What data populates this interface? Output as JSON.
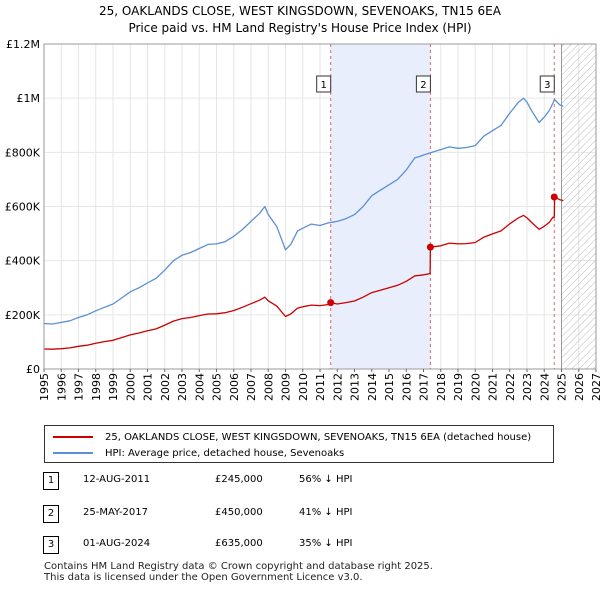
{
  "chart_data": {
    "type": "line",
    "title": "25, OAKLANDS CLOSE, WEST KINGSDOWN, SEVENOAKS, TN15 6EA",
    "subtitle": "Price paid vs. HM Land Registry's House Price Index (HPI)",
    "xlim": [
      1995,
      2027
    ],
    "ylim": [
      0,
      1200000
    ],
    "yticks": [
      0,
      200000,
      400000,
      600000,
      800000,
      1000000,
      1200000
    ],
    "ytick_labels": [
      "£0",
      "£200K",
      "£400K",
      "£600K",
      "£800K",
      "£1M",
      "£1.2M"
    ],
    "xticks": [
      1995,
      1996,
      1997,
      1998,
      1999,
      2000,
      2001,
      2002,
      2003,
      2004,
      2005,
      2006,
      2007,
      2008,
      2009,
      2010,
      2011,
      2012,
      2013,
      2014,
      2015,
      2016,
      2017,
      2018,
      2019,
      2020,
      2021,
      2022,
      2023,
      2024,
      2025,
      2026,
      2027
    ],
    "grid": true,
    "shaded_band": [
      2011.62,
      2017.4
    ],
    "hatched_from": 2025.0,
    "series": [
      {
        "name": "HPI: Average price, detached house, Sevenoaks",
        "color": "#5b8fd6",
        "x": [
          1995.0,
          1995.5,
          1996.0,
          1996.5,
          1997.0,
          1997.5,
          1998.0,
          1998.5,
          1999.0,
          1999.5,
          2000.0,
          2000.5,
          2001.0,
          2001.5,
          2002.0,
          2002.5,
          2003.0,
          2003.5,
          2004.0,
          2004.5,
          2005.0,
          2005.5,
          2006.0,
          2006.5,
          2007.0,
          2007.5,
          2007.8,
          2008.0,
          2008.5,
          2009.0,
          2009.3,
          2009.7,
          2010.0,
          2010.5,
          2011.0,
          2011.5,
          2012.0,
          2012.5,
          2013.0,
          2013.5,
          2014.0,
          2014.5,
          2015.0,
          2015.5,
          2016.0,
          2016.5,
          2016.8,
          2017.0,
          2017.5,
          2018.0,
          2018.5,
          2019.0,
          2019.5,
          2020.0,
          2020.5,
          2021.0,
          2021.5,
          2022.0,
          2022.5,
          2022.8,
          2023.0,
          2023.3,
          2023.7,
          2024.0,
          2024.3,
          2024.6,
          2024.9,
          2025.1
        ],
        "y": [
          168000,
          166000,
          172000,
          178000,
          190000,
          200000,
          215000,
          228000,
          240000,
          262000,
          285000,
          300000,
          318000,
          335000,
          365000,
          400000,
          420000,
          430000,
          445000,
          460000,
          462000,
          470000,
          490000,
          515000,
          545000,
          575000,
          600000,
          570000,
          525000,
          440000,
          460000,
          510000,
          520000,
          535000,
          530000,
          540000,
          545000,
          555000,
          570000,
          600000,
          640000,
          660000,
          680000,
          700000,
          735000,
          780000,
          785000,
          790000,
          800000,
          810000,
          820000,
          815000,
          818000,
          825000,
          860000,
          880000,
          900000,
          945000,
          985000,
          1000000,
          985000,
          950000,
          910000,
          930000,
          955000,
          995000,
          975000,
          970000
        ]
      },
      {
        "name": "25, OAKLANDS CLOSE, WEST KINGSDOWN, SEVENOAKS, TN15 6EA (detached house)",
        "color": "#cc0000",
        "x": [
          1995.0,
          1995.5,
          1996.0,
          1996.5,
          1997.0,
          1997.5,
          1998.0,
          1998.5,
          1999.0,
          1999.5,
          2000.0,
          2000.5,
          2001.0,
          2001.5,
          2002.0,
          2002.5,
          2003.0,
          2003.5,
          2004.0,
          2004.5,
          2005.0,
          2005.5,
          2006.0,
          2006.5,
          2007.0,
          2007.5,
          2007.8,
          2008.0,
          2008.5,
          2009.0,
          2009.3,
          2009.7,
          2010.0,
          2010.5,
          2011.0,
          2011.5,
          2011.62,
          2012.0,
          2012.5,
          2013.0,
          2013.5,
          2014.0,
          2014.5,
          2015.0,
          2015.5,
          2016.0,
          2016.5,
          2016.8,
          2017.0,
          2017.3,
          2017.38,
          2017.4,
          2018.0,
          2018.5,
          2019.0,
          2019.5,
          2020.0,
          2020.5,
          2021.0,
          2021.5,
          2022.0,
          2022.5,
          2022.8,
          2023.0,
          2023.3,
          2023.7,
          2024.0,
          2024.3,
          2024.5,
          2024.58,
          2024.6,
          2024.9,
          2025.1
        ],
        "y": [
          74000,
          73000,
          75000,
          78000,
          84000,
          88000,
          95000,
          101000,
          106000,
          116000,
          126000,
          133000,
          141000,
          148000,
          162000,
          177000,
          186000,
          190000,
          197000,
          203000,
          204000,
          208000,
          216000,
          228000,
          241000,
          254000,
          265000,
          252000,
          232000,
          194000,
          203000,
          225000,
          230000,
          236000,
          234000,
          238000,
          245000,
          240000,
          245000,
          251000,
          265000,
          282000,
          291000,
          300000,
          309000,
          324000,
          344000,
          346000,
          348000,
          351000,
          353000,
          450000,
          455000,
          465000,
          462000,
          463000,
          467000,
          487000,
          499000,
          510000,
          536000,
          558000,
          567000,
          558000,
          539000,
          516000,
          527000,
          542000,
          560000,
          560000,
          635000,
          625000,
          622000
        ]
      }
    ],
    "sales": [
      {
        "num": "1",
        "x": 2011.62,
        "y": 245000
      },
      {
        "num": "2",
        "x": 2017.4,
        "y": 450000
      },
      {
        "num": "3",
        "x": 2024.58,
        "y": 635000
      }
    ]
  },
  "legend": {
    "property_label": "25, OAKLANDS CLOSE, WEST KINGSDOWN, SEVENOAKS, TN15 6EA (detached house)",
    "hpi_label": "HPI: Average price, detached house, Sevenoaks",
    "property_color": "#cc0000",
    "hpi_color": "#5b8fd6"
  },
  "sales_table": [
    {
      "num": "1",
      "date": "12-AUG-2011",
      "price": "£245,000",
      "hpi": "56% ↓ HPI"
    },
    {
      "num": "2",
      "date": "25-MAY-2017",
      "price": "£450,000",
      "hpi": "41% ↓ HPI"
    },
    {
      "num": "3",
      "date": "01-AUG-2024",
      "price": "£635,000",
      "hpi": "35% ↓ HPI"
    }
  ],
  "footer": {
    "line1": "Contains HM Land Registry data © Crown copyright and database right 2025.",
    "line2": "This data is licensed under the Open Government Licence v3.0."
  }
}
